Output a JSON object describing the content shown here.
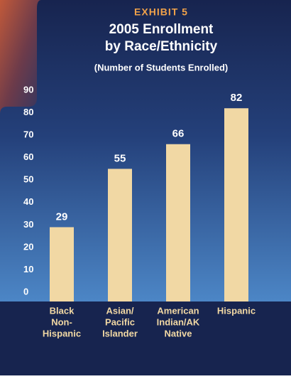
{
  "chart_data": {
    "type": "bar",
    "kicker": "EXHIBIT 5",
    "title": "2005 Enrollment",
    "title_line2": "by Race/Ethnicity",
    "subtitle": "(Number of Students Enrolled)",
    "categories": [
      [
        "Black",
        "Non-",
        "Hispanic"
      ],
      [
        "Asian/",
        "Pacific",
        "Islander"
      ],
      [
        "American",
        "Indian/AK",
        "Native"
      ],
      [
        "Hispanic"
      ]
    ],
    "values": [
      29,
      55,
      66,
      82
    ],
    "color": "#f1d8a4",
    "ylim": [
      0,
      90
    ],
    "yticks": [
      0,
      10,
      20,
      30,
      40,
      50,
      60,
      70,
      80,
      90
    ],
    "grid": false
  }
}
